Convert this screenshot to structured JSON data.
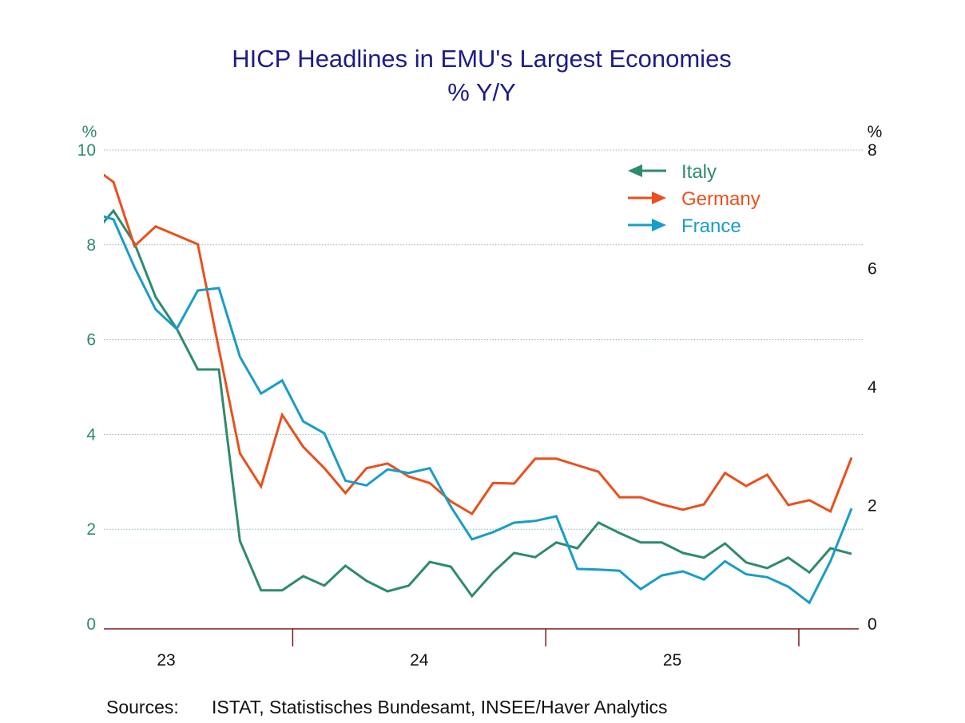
{
  "chart_data": {
    "type": "line",
    "title": "HICP Headlines in EMU's Largest Economies",
    "subtitle": "% Y/Y",
    "left_axis": {
      "unit_label": "%",
      "ylim": [
        0,
        10
      ],
      "ticks": [
        "0",
        "2",
        "4",
        "6",
        "8",
        "10"
      ],
      "color": "#2e8b6b",
      "grid": true
    },
    "right_axis": {
      "unit_label": "%",
      "ylim": [
        0,
        8
      ],
      "ticks": [
        "0",
        "2",
        "4",
        "6",
        "8"
      ],
      "color": "#111111"
    },
    "x_axis": {
      "tick_labels": [
        "23",
        "24",
        "25"
      ],
      "years": [
        2023,
        2024,
        2025
      ],
      "range": [
        "2023-04",
        "2026-03"
      ]
    },
    "x": [
      "2023-03",
      "2023-04",
      "2023-05",
      "2023-06",
      "2023-07",
      "2023-08",
      "2023-09",
      "2023-10",
      "2023-11",
      "2023-12",
      "2024-01",
      "2024-02",
      "2024-03",
      "2024-04",
      "2024-05",
      "2024-06",
      "2024-07",
      "2024-08",
      "2024-09",
      "2024-10",
      "2024-11",
      "2024-12",
      "2025-01",
      "2025-02",
      "2025-03",
      "2025-04",
      "2025-05",
      "2025-06",
      "2025-07",
      "2025-08",
      "2025-09",
      "2025-10",
      "2025-11",
      "2025-12",
      "2026-01",
      "2026-02",
      "2026-03"
    ],
    "series": [
      {
        "name": "Italy",
        "axis": "left",
        "arrow": "left",
        "color": "#2e8b6b",
        "values": [
          8.2,
          8.72,
          8.03,
          6.9,
          6.23,
          5.37,
          5.37,
          1.75,
          0.71,
          0.71,
          1.01,
          0.81,
          1.23,
          0.91,
          0.69,
          0.81,
          1.31,
          1.21,
          0.59,
          1.09,
          1.5,
          1.41,
          1.72,
          1.6,
          2.14,
          1.92,
          1.72,
          1.72,
          1.5,
          1.4,
          1.7,
          1.3,
          1.18,
          1.4,
          1.09,
          1.6,
          1.48
        ]
      },
      {
        "name": "Germany",
        "axis": "right",
        "arrow": "right",
        "color": "#e8501e",
        "values": [
          7.72,
          7.46,
          6.38,
          6.71,
          6.56,
          6.41,
          4.64,
          2.88,
          2.32,
          3.53,
          2.99,
          2.63,
          2.21,
          2.63,
          2.71,
          2.49,
          2.38,
          2.07,
          1.86,
          2.38,
          2.37,
          2.79,
          2.79,
          2.68,
          2.57,
          2.14,
          2.14,
          2.02,
          1.93,
          2.02,
          2.55,
          2.33,
          2.52,
          2.01,
          2.09,
          1.9,
          2.81
        ]
      },
      {
        "name": "France",
        "axis": "right",
        "arrow": "right",
        "color": "#1a9cc8",
        "values": [
          6.93,
          6.83,
          6.02,
          5.31,
          4.98,
          5.63,
          5.67,
          4.51,
          3.89,
          4.11,
          3.42,
          3.22,
          2.42,
          2.34,
          2.61,
          2.55,
          2.63,
          1.98,
          1.43,
          1.55,
          1.71,
          1.74,
          1.82,
          0.93,
          0.92,
          0.9,
          0.59,
          0.82,
          0.89,
          0.75,
          1.06,
          0.84,
          0.79,
          0.63,
          0.36,
          1.06,
          1.95
        ]
      }
    ],
    "legend_position": "top-right"
  },
  "footer": {
    "sources_label": "Sources:",
    "sources_text": "ISTAT, Statistisches Bundesamt, INSEE/Haver Analytics"
  }
}
